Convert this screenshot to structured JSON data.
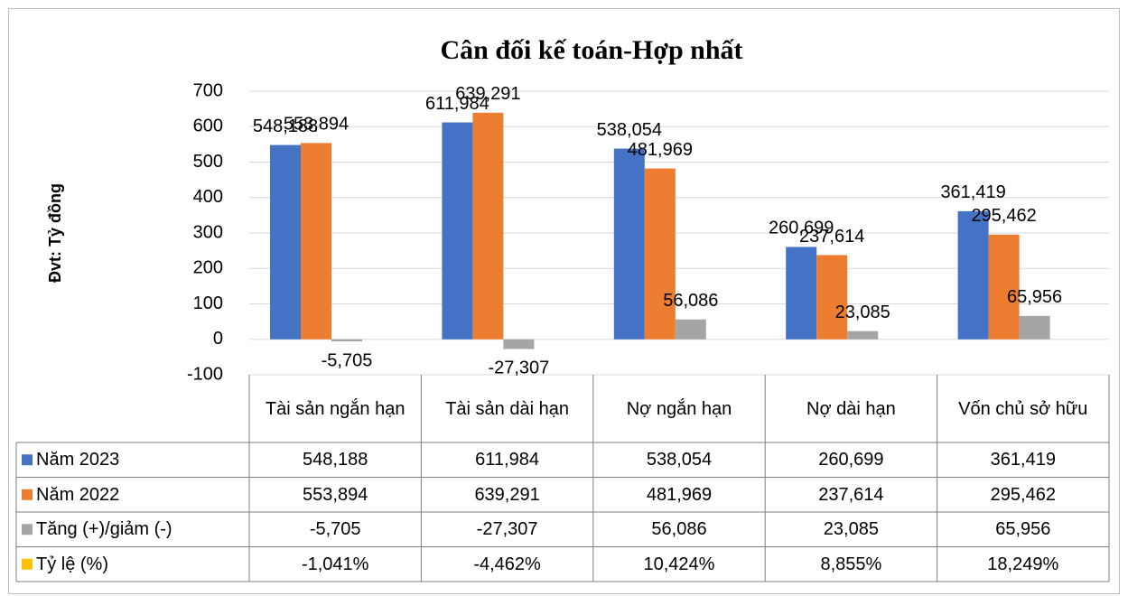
{
  "chart_data": {
    "type": "bar",
    "title": "Cân đối kế toán-Hợp nhất",
    "y_label": "Đvt: Tỷ đồng",
    "categories": [
      "Tài sản ngắn hạn",
      "Tài sản dài hạn",
      "Nợ ngắn hạn",
      "Nợ dài hạn",
      "Vốn chủ sở hữu"
    ],
    "series": [
      {
        "name": "Năm 2023",
        "color": "#4472c4",
        "values": [
          548.188,
          611.984,
          538.054,
          260.699,
          361.419
        ],
        "value_labels": [
          "548,188",
          "611,984",
          "538,054",
          "260,699",
          "361,419"
        ]
      },
      {
        "name": "Năm 2022",
        "color": "#ed7d31",
        "values": [
          553.894,
          639.291,
          481.969,
          237.614,
          295.462
        ],
        "value_labels": [
          "553,894",
          "639,291",
          "481,969",
          "237,614",
          "295,462"
        ]
      },
      {
        "name": "Tăng (+)/giảm (-)",
        "color": "#a5a5a5",
        "values": [
          -5.705,
          -27.307,
          56.086,
          23.085,
          65.956
        ],
        "value_labels": [
          "-5,705",
          "-27,307",
          "56,086",
          "23,085",
          "65,956"
        ]
      }
    ],
    "ratio_series": {
      "name": "Tỷ lệ (%)",
      "color": "#ffc000",
      "values": [
        -1.041,
        -4.462,
        10.424,
        8.855,
        18.249
      ],
      "value_labels": [
        "-1,041%",
        "-4,462%",
        "10,424%",
        "8,855%",
        "18,249%"
      ]
    },
    "ylim": [
      -100,
      700
    ],
    "yticks": [
      -100,
      0,
      100,
      200,
      300,
      400,
      500,
      600,
      700
    ],
    "grid": true
  }
}
